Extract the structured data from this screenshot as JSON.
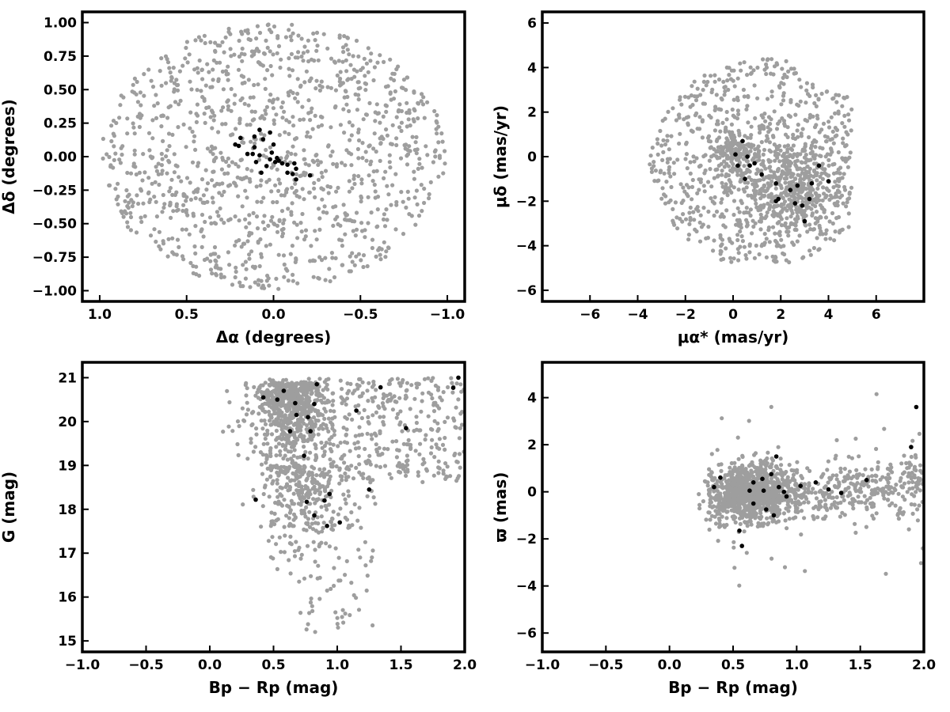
{
  "chart_data": [
    {
      "type": "scatter",
      "xlabel": "Δα (degrees)",
      "ylabel": "Δδ (degrees)",
      "xlim": [
        1.1,
        -1.1
      ],
      "ylim": [
        -1.08,
        1.08
      ],
      "x_reversed": true,
      "xticks": [
        "1.0",
        "0.5",
        "0.0",
        "−0.5",
        "−1.0"
      ],
      "yticks": [
        "−1.00",
        "−0.75",
        "−0.50",
        "−0.25",
        "0.00",
        "0.25",
        "0.50",
        "0.75",
        "1.00"
      ],
      "field_region": {
        "shape": "circle",
        "radius": 1.0
      },
      "series": [
        {
          "role": "field",
          "color": "#9e9e9e",
          "n_points": 1200
        },
        {
          "role": "members",
          "color": "#000000",
          "points": [
            [
              0.08,
              0.2
            ],
            [
              0.11,
              0.15
            ],
            [
              0.19,
              0.14
            ],
            [
              0.2,
              0.08
            ],
            [
              0.15,
              0.02
            ],
            [
              0.11,
              0.07
            ],
            [
              0.06,
              0.13
            ],
            [
              0.02,
              0.18
            ],
            [
              0.0,
              0.09
            ],
            [
              0.08,
              0.01
            ],
            [
              0.02,
              -0.02
            ],
            [
              -0.01,
              -0.04
            ],
            [
              -0.05,
              -0.05
            ],
            [
              -0.08,
              -0.06
            ],
            [
              -0.12,
              -0.05
            ],
            [
              -0.13,
              -0.09
            ],
            [
              -0.11,
              -0.13
            ],
            [
              -0.13,
              -0.17
            ],
            [
              -0.21,
              -0.14
            ],
            [
              -0.08,
              -0.12
            ],
            [
              -0.03,
              -0.03
            ],
            [
              0.04,
              -0.07
            ],
            [
              0.07,
              -0.12
            ],
            [
              0.12,
              0.02
            ],
            [
              0.22,
              0.09
            ],
            [
              0.01,
              0.03
            ],
            [
              -0.02,
              -0.01
            ],
            [
              0.1,
              -0.04
            ]
          ]
        }
      ]
    },
    {
      "type": "scatter",
      "xlabel": "μα* (mas/yr)",
      "ylabel": "μδ (mas/yr)",
      "xlim": [
        -8,
        8
      ],
      "ylim": [
        -6.5,
        6.5
      ],
      "xticks": [
        "−6",
        "−4",
        "−2",
        "0",
        "2",
        "4",
        "6"
      ],
      "yticks": [
        "−6",
        "−4",
        "−2",
        "0",
        "2",
        "4",
        "6"
      ],
      "series": [
        {
          "role": "field",
          "color": "#9e9e9e",
          "n_points": 1200,
          "center": [
            1.2,
            -0.3
          ],
          "radius": 4.7
        },
        {
          "role": "members",
          "color": "#000000",
          "points": [
            [
              0.1,
              0.1
            ],
            [
              0.4,
              0.7
            ],
            [
              0.6,
              0.0
            ],
            [
              0.9,
              -0.3
            ],
            [
              0.7,
              -0.4
            ],
            [
              0.2,
              -0.4
            ],
            [
              0.5,
              -1.0
            ],
            [
              1.2,
              -0.8
            ],
            [
              1.8,
              -1.2
            ],
            [
              1.9,
              -1.9
            ],
            [
              2.4,
              -1.5
            ],
            [
              2.7,
              -1.3
            ],
            [
              2.9,
              -2.2
            ],
            [
              3.0,
              -2.9
            ],
            [
              3.2,
              -1.9
            ],
            [
              3.3,
              -1.2
            ],
            [
              3.6,
              -0.4
            ],
            [
              4.0,
              -1.1
            ],
            [
              2.6,
              -2.1
            ],
            [
              1.8,
              -2.0
            ]
          ]
        }
      ]
    },
    {
      "type": "scatter",
      "xlabel": "Bp − Rp (mag)",
      "ylabel": "G (mag)",
      "xlim": [
        -1.0,
        2.0
      ],
      "ylim": [
        14.75,
        21.35
      ],
      "xticks": [
        "−1.0",
        "−0.5",
        "0.0",
        "0.5",
        "1.0",
        "1.5",
        "2.0"
      ],
      "yticks": [
        "15",
        "16",
        "17",
        "18",
        "19",
        "20",
        "21"
      ],
      "series": [
        {
          "role": "field",
          "color": "#9e9e9e",
          "n_points": 1300
        },
        {
          "role": "members",
          "color": "#000000",
          "points": [
            [
              0.36,
              18.22
            ],
            [
              0.42,
              20.55
            ],
            [
              0.53,
              20.5
            ],
            [
              0.58,
              20.7
            ],
            [
              0.63,
              19.78
            ],
            [
              0.68,
              20.15
            ],
            [
              0.67,
              20.42
            ],
            [
              0.74,
              19.22
            ],
            [
              0.76,
              18.17
            ],
            [
              0.77,
              20.1
            ],
            [
              0.79,
              19.78
            ],
            [
              0.82,
              17.86
            ],
            [
              0.82,
              20.4
            ],
            [
              0.84,
              20.85
            ],
            [
              0.9,
              18.2
            ],
            [
              0.92,
              17.62
            ],
            [
              0.94,
              18.35
            ],
            [
              1.02,
              17.7
            ],
            [
              1.15,
              20.25
            ],
            [
              1.25,
              18.45
            ],
            [
              1.34,
              20.78
            ],
            [
              1.54,
              19.85
            ],
            [
              1.91,
              20.77
            ],
            [
              1.95,
              21.0
            ]
          ]
        }
      ]
    },
    {
      "type": "scatter",
      "xlabel": "Bp − Rp (mag)",
      "ylabel": "ϖ (mas)",
      "xlim": [
        -1.0,
        2.0
      ],
      "ylim": [
        -6.8,
        5.5
      ],
      "xticks": [
        "−1.0",
        "−0.5",
        "0.0",
        "0.5",
        "1.0",
        "1.5",
        "2.0"
      ],
      "yticks": [
        "−6",
        "−4",
        "−2",
        "0",
        "2",
        "4"
      ],
      "series": [
        {
          "role": "field",
          "color": "#9e9e9e",
          "n_points": 1300
        },
        {
          "role": "members",
          "color": "#000000",
          "points": [
            [
              0.35,
              0.2
            ],
            [
              0.4,
              0.6
            ],
            [
              0.55,
              -1.65
            ],
            [
              0.57,
              -2.3
            ],
            [
              0.63,
              0.05
            ],
            [
              0.66,
              0.4
            ],
            [
              0.66,
              -0.5
            ],
            [
              0.73,
              0.55
            ],
            [
              0.74,
              0.05
            ],
            [
              0.76,
              -0.75
            ],
            [
              0.8,
              0.75
            ],
            [
              0.82,
              -1.0
            ],
            [
              0.84,
              1.5
            ],
            [
              0.86,
              0.2
            ],
            [
              0.9,
              0.0
            ],
            [
              0.92,
              -0.2
            ],
            [
              1.03,
              0.25
            ],
            [
              1.15,
              0.4
            ],
            [
              1.25,
              0.1
            ],
            [
              1.35,
              -0.05
            ],
            [
              1.55,
              0.5
            ],
            [
              1.9,
              1.9
            ],
            [
              1.94,
              3.6
            ]
          ]
        }
      ]
    }
  ]
}
